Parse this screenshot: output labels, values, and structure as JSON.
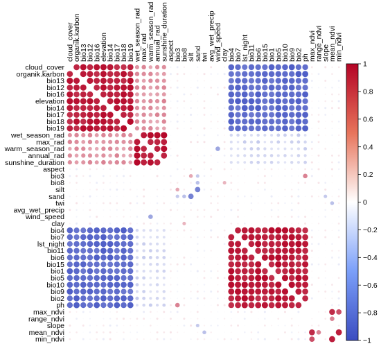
{
  "chart_data": {
    "type": "heatmap",
    "title": "",
    "variables": [
      "cloud_cover",
      "organik.karbon",
      "bio13",
      "bio12",
      "bio16",
      "elevation",
      "bio14",
      "bio17",
      "bio18",
      "bio19",
      "wet_season_rad",
      "max_rad",
      "warm_season_rad",
      "annual_rad",
      "sunshine_duration",
      "aspect",
      "bio3",
      "bio8",
      "silt",
      "sand",
      "twi",
      "avg_wet_precip",
      "wind_speed",
      "clay",
      "bio4",
      "bio7",
      "lst_night",
      "bio11",
      "bio6",
      "bio15",
      "bio1",
      "bio5",
      "bio10",
      "bio9",
      "bio2",
      "ph",
      "max_ndvi",
      "range_ndvi",
      "slope",
      "mean_ndvi",
      "min_ndvi"
    ],
    "groups": {
      "A": [
        "cloud_cover",
        "organik.karbon",
        "bio13",
        "bio12",
        "bio16",
        "elevation",
        "bio14",
        "bio17",
        "bio18",
        "bio19"
      ],
      "R": [
        "wet_season_rad",
        "max_rad",
        "warm_season_rad",
        "annual_rad",
        "sunshine_duration"
      ],
      "M": [
        "bio4",
        "bio7",
        "lst_night",
        "bio11",
        "bio6",
        "bio15",
        "bio1",
        "bio5",
        "bio10",
        "bio9",
        "bio2",
        "ph"
      ],
      "N": [
        "max_ndvi",
        "range_ndvi",
        "slope",
        "mean_ndvi",
        "min_ndvi"
      ]
    },
    "block_correlations": {
      "A-A": 0.9,
      "R-R": 0.92,
      "M-M": 0.9,
      "N-N": 0.05,
      "A-R": 0.42,
      "A-M": -0.82,
      "R-M": -0.22
    },
    "pair_correlations": [
      [
        "max_ndvi",
        "mean_ndvi",
        0.85
      ],
      [
        "max_ndvi",
        "min_ndvi",
        0.7
      ],
      [
        "mean_ndvi",
        "min_ndvi",
        0.9
      ],
      [
        "range_ndvi",
        "mean_ndvi",
        0.5
      ],
      [
        "silt",
        "sand",
        -0.7
      ],
      [
        "bio3",
        "silt",
        0.35
      ],
      [
        "bio8",
        "sand",
        -0.35
      ],
      [
        "bio3",
        "ph",
        0.5
      ],
      [
        "wind_speed",
        "warm_season_rad",
        -0.5
      ],
      [
        "twi",
        "mean_ndvi",
        -0.35
      ],
      [
        "slope",
        "sand",
        -0.3
      ],
      [
        "bio3",
        "sand",
        -0.3
      ],
      [
        "clay",
        "bio8",
        0.3
      ]
    ],
    "colorbar": {
      "min": -1,
      "max": 1,
      "ticks": [
        "1",
        "0.8",
        "0.6",
        "0.4",
        "0.2",
        "0",
        "−0.2",
        "−0.4",
        "−0.6",
        "−0.8",
        "−1"
      ],
      "colors": {
        "negative": "#3b4cc0",
        "zero": "#ffffff",
        "positive": "#b40426"
      }
    }
  }
}
